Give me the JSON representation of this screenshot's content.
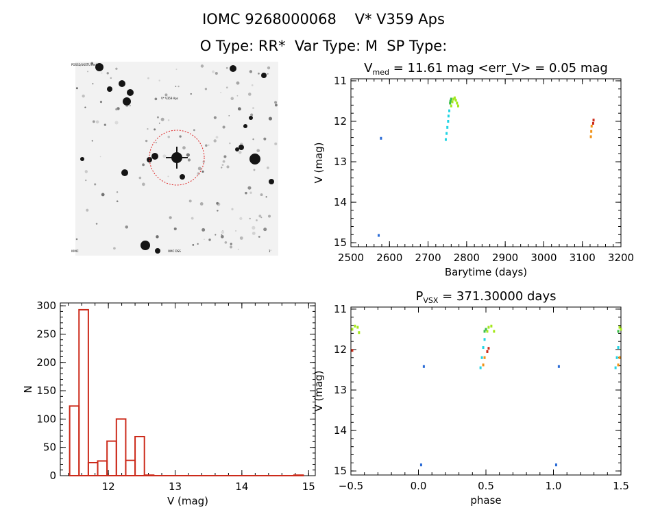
{
  "header": {
    "title": "IOMC 9268000068    V* V359 Aps",
    "subtitle": "O Type: RR*  Var Type: M  SP Type:"
  },
  "finder_image": {
    "labels": [
      "POSS2/UKSTU Red",
      "V* V359 Aps",
      "IOMC",
      "OMC DSS",
      "1'"
    ]
  },
  "chart_data": [
    {
      "id": "lightcurve",
      "type": "scatter",
      "title_parts": {
        "prefix": "V",
        "sub": "med",
        "rest": " = 11.61 mag <err_V> = 0.05 mag"
      },
      "xlabel": "Barytime (days)",
      "ylabel": "V (mag)",
      "xlim": [
        2500,
        3200
      ],
      "ylim": [
        15.1,
        10.95
      ],
      "y_inverted": true,
      "xticks": [
        2500,
        2600,
        2700,
        2800,
        2900,
        3000,
        3100,
        3200
      ],
      "yticks": [
        11,
        12,
        13,
        14,
        15
      ],
      "series": [
        {
          "color": "#2a6bd6",
          "points": [
            [
              2578,
              12.42
            ],
            [
              2572,
              14.82
            ]
          ]
        },
        {
          "color": "#22d4e4",
          "points": [
            [
              2746,
              12.45
            ],
            [
              2748,
              12.3
            ],
            [
              2750,
              12.15
            ],
            [
              2752,
              12.0
            ],
            [
              2753,
              11.87
            ],
            [
              2755,
              11.74
            ]
          ]
        },
        {
          "color": "#3cbf4a",
          "points": [
            [
              2757,
              11.55
            ],
            [
              2758,
              11.5
            ],
            [
              2760,
              11.45
            ]
          ]
        },
        {
          "color": "#a4e81c",
          "points": [
            [
              2760,
              11.62
            ],
            [
              2763,
              11.52
            ],
            [
              2766,
              11.45
            ],
            [
              2769,
              11.42
            ],
            [
              2772,
              11.48
            ],
            [
              2775,
              11.55
            ],
            [
              2778,
              11.62
            ]
          ]
        },
        {
          "color": "#f09218",
          "points": [
            [
              3122,
              12.38
            ],
            [
              3123,
              12.25
            ],
            [
              3124,
              12.12
            ]
          ]
        },
        {
          "color": "#cc2a1a",
          "points": [
            [
              3128,
              12.05
            ],
            [
              3129,
              11.97
            ]
          ]
        }
      ]
    },
    {
      "id": "histogram",
      "type": "bar",
      "xlabel": "V (mag)",
      "ylabel": "N",
      "xlim": [
        11.28,
        15.1
      ],
      "ylim": [
        0,
        305
      ],
      "xticks": [
        12,
        13,
        14,
        15
      ],
      "yticks": [
        0,
        50,
        100,
        150,
        200,
        250,
        300
      ],
      "bin_width": 0.14,
      "bin_start": 11.42,
      "values": [
        123,
        293,
        23,
        26,
        61,
        100,
        27,
        69,
        1,
        0,
        0,
        0,
        0,
        0,
        0,
        0,
        0,
        0,
        0,
        0,
        0,
        0,
        0,
        0,
        1
      ],
      "color": "#cc2a1a"
    },
    {
      "id": "phased",
      "type": "scatter",
      "title_parts": {
        "prefix": "P",
        "sub": "VSX",
        "rest": " = 371.30000 days"
      },
      "xlabel": "phase",
      "ylabel": "V (mag)",
      "xlim": [
        -0.5,
        1.5
      ],
      "ylim": [
        15.1,
        10.95
      ],
      "y_inverted": true,
      "xticks": [
        -0.5,
        0.0,
        0.5,
        1.0,
        1.5
      ],
      "yticks": [
        11,
        12,
        13,
        14,
        15
      ],
      "series": [
        {
          "color": "#a4e81c",
          "points": [
            [
              -0.49,
              11.5
            ],
            [
              -0.47,
              11.42
            ],
            [
              -0.45,
              11.45
            ],
            [
              -0.44,
              11.58
            ],
            [
              0.51,
              11.55
            ],
            [
              0.52,
              11.45
            ],
            [
              0.54,
              11.42
            ],
            [
              0.56,
              11.55
            ],
            [
              1.5,
              11.5
            ],
            [
              1.49,
              11.45
            ]
          ]
        },
        {
          "color": "#3cbf4a",
          "points": [
            [
              0.49,
              11.55
            ],
            [
              0.5,
              11.5
            ],
            [
              1.48,
              11.55
            ]
          ]
        },
        {
          "color": "#22d4e4",
          "points": [
            [
              0.46,
              12.45
            ],
            [
              0.47,
              12.2
            ],
            [
              0.48,
              11.95
            ],
            [
              0.49,
              11.75
            ],
            [
              1.46,
              12.45
            ],
            [
              1.47,
              12.2
            ],
            [
              1.48,
              11.95
            ]
          ]
        },
        {
          "color": "#2a6bd6",
          "points": [
            [
              0.04,
              12.42
            ],
            [
              1.04,
              12.42
            ],
            [
              0.02,
              14.85
            ],
            [
              1.02,
              14.85
            ]
          ]
        },
        {
          "color": "#f09218",
          "points": [
            [
              0.48,
              12.38
            ],
            [
              0.49,
              12.2
            ],
            [
              1.48,
              12.38
            ],
            [
              1.49,
              12.2
            ]
          ]
        },
        {
          "color": "#cc2a1a",
          "points": [
            [
              0.51,
              12.05
            ],
            [
              0.52,
              11.97
            ],
            [
              -0.49,
              12.02
            ]
          ]
        }
      ]
    }
  ]
}
